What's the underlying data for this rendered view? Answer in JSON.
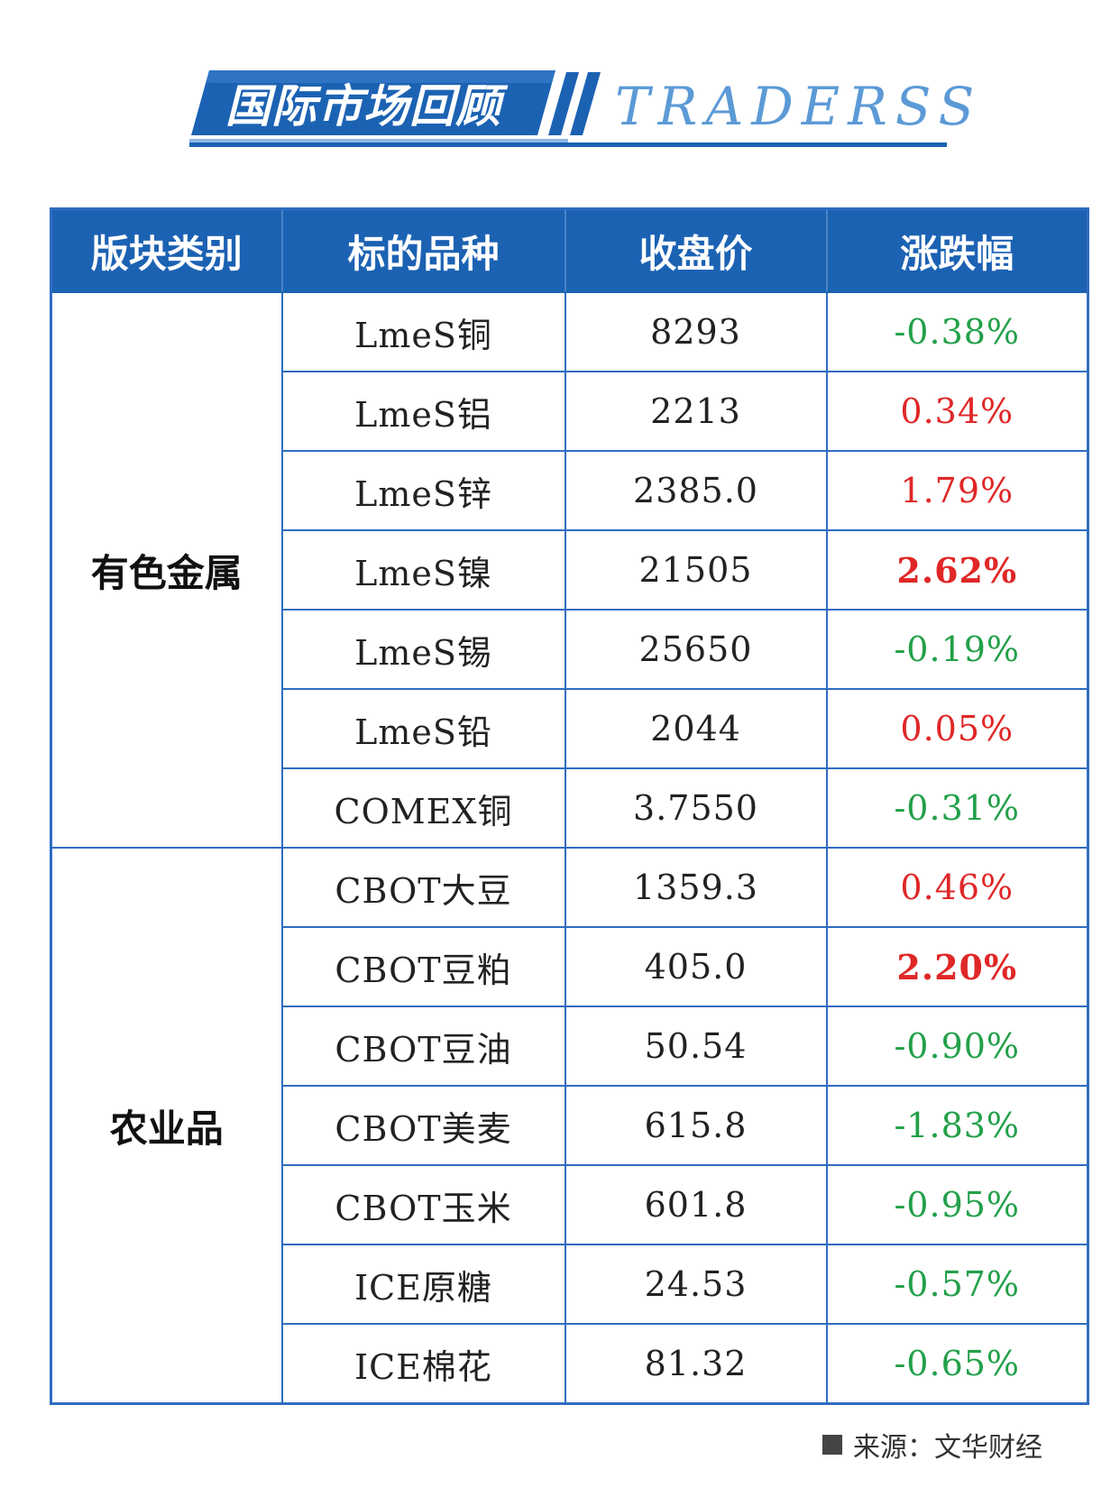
{
  "banner": {
    "title": "国际市场回顾",
    "brand": "TRADERSS",
    "colors": {
      "primary": "#1c62b3",
      "light": "#5c9ad6"
    }
  },
  "table": {
    "headers": [
      "版块类别",
      "标的品种",
      "收盘价",
      "涨跌幅"
    ],
    "groups": [
      {
        "category": "有色金属",
        "rows": [
          {
            "name": "LmeS铜",
            "price": "8293",
            "change": "-0.38%",
            "direction": "down",
            "bold": false
          },
          {
            "name": "LmeS铝",
            "price": "2213",
            "change": "0.34%",
            "direction": "up",
            "bold": false
          },
          {
            "name": "LmeS锌",
            "price": "2385.0",
            "change": "1.79%",
            "direction": "up",
            "bold": false
          },
          {
            "name": "LmeS镍",
            "price": "21505",
            "change": "2.62%",
            "direction": "up",
            "bold": true
          },
          {
            "name": "LmeS锡",
            "price": "25650",
            "change": "-0.19%",
            "direction": "down",
            "bold": false
          },
          {
            "name": "LmeS铅",
            "price": "2044",
            "change": "0.05%",
            "direction": "up",
            "bold": false
          },
          {
            "name": "COMEX铜",
            "price": "3.7550",
            "change": "-0.31%",
            "direction": "down",
            "bold": false
          }
        ]
      },
      {
        "category": "农业品",
        "rows": [
          {
            "name": "CBOT大豆",
            "price": "1359.3",
            "change": "0.46%",
            "direction": "up",
            "bold": false
          },
          {
            "name": "CBOT豆粕",
            "price": "405.0",
            "change": "2.20%",
            "direction": "up",
            "bold": true
          },
          {
            "name": "CBOT豆油",
            "price": "50.54",
            "change": "-0.90%",
            "direction": "down",
            "bold": false
          },
          {
            "name": "CBOT美麦",
            "price": "615.8",
            "change": "-1.83%",
            "direction": "down",
            "bold": false
          },
          {
            "name": "CBOT玉米",
            "price": "601.8",
            "change": "-0.95%",
            "direction": "down",
            "bold": false
          },
          {
            "name": "ICE原糖",
            "price": "24.53",
            "change": "-0.57%",
            "direction": "down",
            "bold": false
          },
          {
            "name": "ICE棉花",
            "price": "81.32",
            "change": "-0.65%",
            "direction": "down",
            "bold": false
          }
        ]
      }
    ],
    "colors": {
      "up": "#e02727",
      "down": "#22a049",
      "header_bg": "#1c62b3",
      "border": "#2f6cc0"
    }
  },
  "footer": {
    "source": "来源：文华财经",
    "icon": "square-bullet-icon"
  }
}
